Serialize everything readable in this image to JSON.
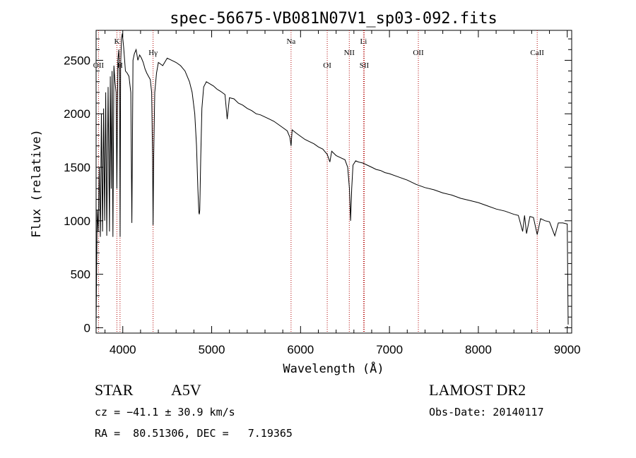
{
  "chart_data": {
    "type": "line",
    "title": "spec-56675-VB081N07V1_sp03-092.fits",
    "xlabel": "Wavelength (Å)",
    "ylabel": "Flux (relative)",
    "xlim": [
      3700,
      9050
    ],
    "ylim": [
      -50,
      2780
    ],
    "x_ticks": [
      4000,
      5000,
      6000,
      7000,
      8000,
      9000
    ],
    "y_ticks": [
      0,
      500,
      1000,
      1500,
      2000,
      2500
    ],
    "grid": false,
    "series": [
      {
        "x": [
          3700,
          3712,
          3724,
          3736,
          3748,
          3760,
          3772,
          3784,
          3796,
          3808,
          3820,
          3835,
          3850,
          3860,
          3870,
          3880,
          3889,
          3900,
          3912,
          3925,
          3934,
          3945,
          3955,
          3964,
          3970,
          3976,
          3985,
          3995,
          4010,
          4030,
          4050,
          4070,
          4090,
          4102,
          4115,
          4130,
          4150,
          4170,
          4190,
          4210,
          4230,
          4250,
          4270,
          4290,
          4310,
          4325,
          4335,
          4341,
          4348,
          4360,
          4380,
          4400,
          4450,
          4500,
          4550,
          4600,
          4650,
          4700,
          4750,
          4780,
          4810,
          4830,
          4845,
          4856,
          4861,
          4866,
          4877,
          4890,
          4910,
          4940,
          4980,
          5020,
          5060,
          5100,
          5150,
          5175,
          5200,
          5250,
          5300,
          5350,
          5400,
          5450,
          5500,
          5550,
          5600,
          5650,
          5700,
          5750,
          5800,
          5850,
          5880,
          5893,
          5905,
          5950,
          6000,
          6050,
          6100,
          6150,
          6200,
          6250,
          6300,
          6330,
          6350,
          6400,
          6450,
          6500,
          6530,
          6550,
          6563,
          6575,
          6590,
          6620,
          6650,
          6700,
          6750,
          6800,
          6850,
          6900,
          6950,
          7000,
          7100,
          7200,
          7300,
          7400,
          7500,
          7600,
          7700,
          7800,
          7900,
          8000,
          8100,
          8200,
          8300,
          8400,
          8450,
          8498,
          8520,
          8542,
          8580,
          8620,
          8662,
          8700,
          8750,
          8800,
          8860,
          8900,
          8950,
          9000,
          9010
        ],
        "y": [
          30,
          1100,
          900,
          1500,
          850,
          2000,
          900,
          2050,
          1000,
          2200,
          860,
          2250,
          900,
          2350,
          1300,
          2400,
          850,
          2450,
          2300,
          2200,
          1300,
          2500,
          2600,
          2350,
          850,
          2450,
          2700,
          2750,
          2620,
          2400,
          2380,
          2350,
          2200,
          980,
          2500,
          2560,
          2600,
          2500,
          2550,
          2520,
          2480,
          2420,
          2380,
          2350,
          2320,
          2200,
          1600,
          960,
          1600,
          2200,
          2380,
          2480,
          2450,
          2520,
          2500,
          2480,
          2450,
          2400,
          2300,
          2200,
          2000,
          1700,
          1300,
          1080,
          1060,
          1100,
          1600,
          2050,
          2250,
          2300,
          2280,
          2260,
          2230,
          2210,
          2180,
          1950,
          2150,
          2140,
          2100,
          2080,
          2050,
          2030,
          2000,
          1990,
          1970,
          1950,
          1930,
          1900,
          1870,
          1840,
          1780,
          1700,
          1850,
          1820,
          1790,
          1760,
          1740,
          1720,
          1690,
          1670,
          1620,
          1550,
          1650,
          1610,
          1590,
          1570,
          1500,
          1300,
          1000,
          1300,
          1520,
          1560,
          1550,
          1540,
          1520,
          1500,
          1480,
          1470,
          1450,
          1440,
          1410,
          1380,
          1340,
          1310,
          1290,
          1260,
          1240,
          1210,
          1190,
          1170,
          1140,
          1110,
          1090,
          1060,
          1050,
          900,
          1050,
          880,
          1040,
          1030,
          870,
          1020,
          1000,
          990,
          860,
          980,
          980,
          970,
          30
        ]
      }
    ],
    "line_markers": [
      {
        "label": "OII",
        "x": 3727,
        "label_row": 2
      },
      {
        "label": "K",
        "x": 3934,
        "label_row": 0
      },
      {
        "label": "H",
        "x": 3969,
        "label_row": 2
      },
      {
        "label": "Hγ",
        "x": 4341,
        "label_row": 1
      },
      {
        "label": "Na",
        "x": 5893,
        "label_row": 0
      },
      {
        "label": "OI",
        "x": 6300,
        "label_row": 2
      },
      {
        "label": "NII",
        "x": 6548,
        "label_row": 1
      },
      {
        "label": "Li",
        "x": 6708,
        "label_row": 0
      },
      {
        "label": "SII",
        "x": 6717,
        "label_row": 2
      },
      {
        "label": "OII",
        "x": 7325,
        "label_row": 1
      },
      {
        "label": "CaII",
        "x": 8662,
        "label_row": 1
      }
    ]
  },
  "info": {
    "object_class": "STAR",
    "subclass": "A5V",
    "survey": "LAMOST DR2",
    "redshift_line": "cz = −41.1 ± 30.9 km/s",
    "obs_date_line": "Obs-Date: 20140117",
    "coords_line": "RA =  80.51306, DEC =   7.19365"
  }
}
